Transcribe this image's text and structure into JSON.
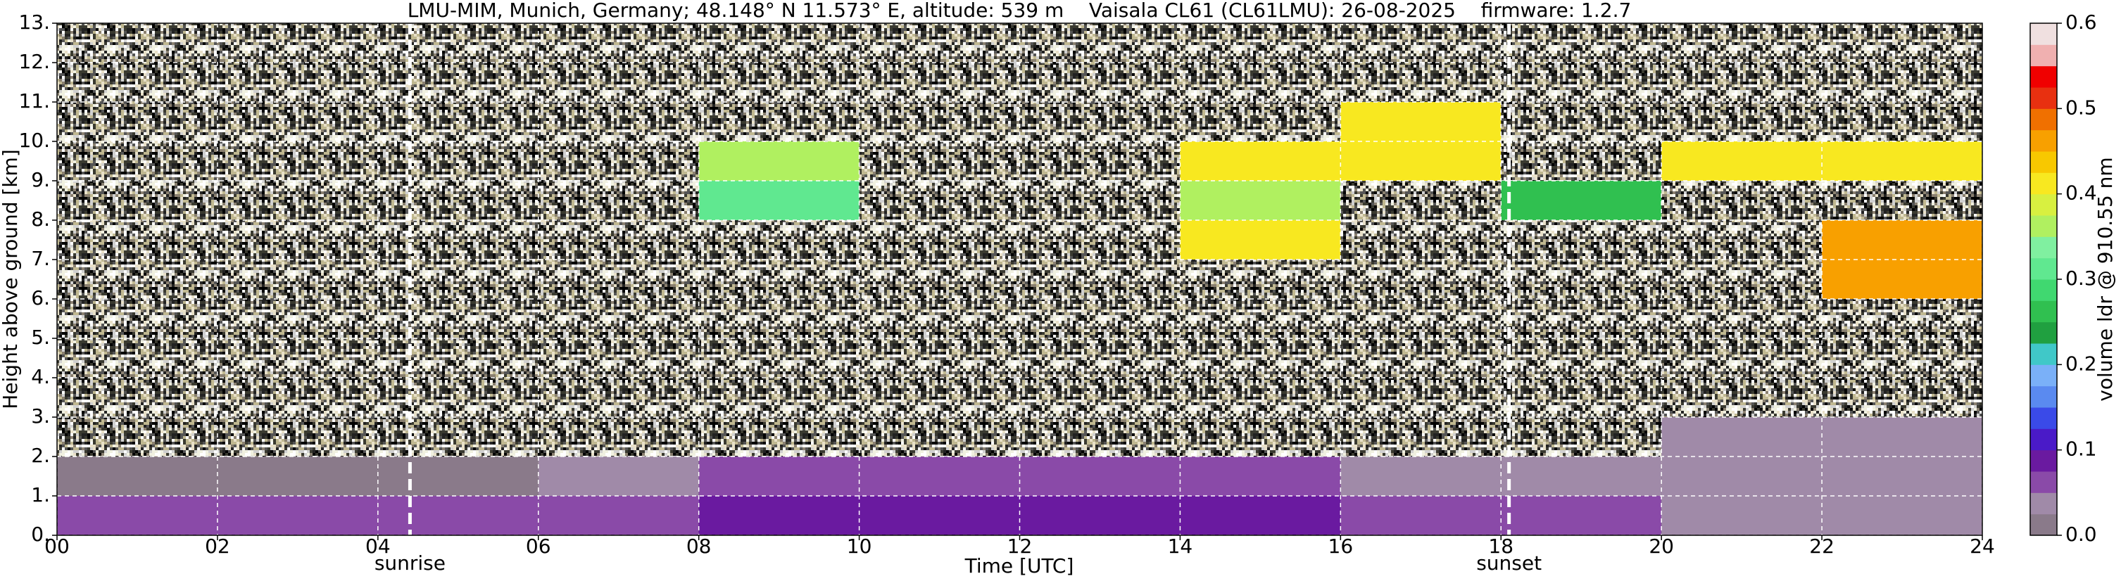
{
  "chart_data": {
    "type": "heatmap",
    "title": "LMU-MIM, Munich, Germany; 48.148° N 11.573° E, altitude: 539 m    Vaisala CL61 (CL61LMU): 26-08-2025    firmware: 1.2.7",
    "x_label": "Time [UTC]",
    "y_label": "Height above ground [km]",
    "colorbar_label": "volume ldr @ 910.55 nm",
    "xlim": [
      0,
      24
    ],
    "xticks": [
      {
        "value": 0,
        "label": "00"
      },
      {
        "value": 2,
        "label": "02"
      },
      {
        "value": 4,
        "label": "04"
      },
      {
        "value": 6,
        "label": "06"
      },
      {
        "value": 8,
        "label": "08"
      },
      10,
      12,
      14,
      16,
      18,
      20,
      22,
      24
    ],
    "ylim": [
      0,
      13
    ],
    "yticks": [
      {
        "value": 0,
        "label": "0."
      },
      {
        "value": 1,
        "label": "1."
      },
      {
        "value": 2,
        "label": "2."
      },
      {
        "value": 3,
        "label": "3."
      },
      {
        "value": 4,
        "label": "4."
      },
      {
        "value": 5,
        "label": "5."
      },
      {
        "value": 6,
        "label": "6."
      },
      {
        "value": 7,
        "label": "7."
      },
      {
        "value": 8,
        "label": "8."
      },
      {
        "value": 9,
        "label": "9."
      },
      {
        "value": 10,
        "label": "10."
      },
      {
        "value": 11,
        "label": "11."
      },
      {
        "value": 12,
        "label": "12."
      },
      {
        "value": 13,
        "label": "13."
      }
    ],
    "zlim": [
      0,
      0.6
    ],
    "zticks": [
      {
        "value": 0,
        "label": "0.0"
      },
      0.1,
      0.2,
      0.3,
      0.4,
      0.5,
      0.6
    ],
    "colors": [
      "#8a7a8a",
      "#a08aa8",
      "#8a4aa8",
      "#6a1aa0",
      "#4a1ac8",
      "#3a4ae8",
      "#5a8af0",
      "#7ab0f8",
      "#40c8c8",
      "#20a040",
      "#30c050",
      "#40d870",
      "#60e890",
      "#80f0a0",
      "#b0f060",
      "#d8f040",
      "#f8e820",
      "#f8c800",
      "#f8a000",
      "#f07000",
      "#e83010",
      "#f00000",
      "#f0b0b0",
      "#f0e0e0"
    ],
    "grid": true,
    "xbins": [
      0,
      2,
      4,
      6,
      8,
      10,
      12,
      14,
      16,
      18,
      20,
      22,
      24
    ],
    "ybins": [
      0,
      1,
      2,
      3,
      4,
      5,
      6,
      7,
      8,
      9,
      10,
      11,
      12,
      13
    ],
    "z": [
      [
        0.05,
        0.05,
        0.05,
        0.07,
        0.08,
        0.09,
        0.09,
        0.08,
        0.06,
        0.05,
        0.04,
        0.04
      ],
      [
        0.02,
        0.02,
        0.02,
        0.03,
        0.05,
        0.06,
        0.06,
        0.05,
        0.04,
        0.03,
        0.03,
        0.03
      ],
      [
        null,
        null,
        null,
        null,
        null,
        null,
        null,
        null,
        null,
        null,
        0.03,
        0.03
      ],
      [
        null,
        null,
        null,
        null,
        null,
        null,
        null,
        null,
        null,
        null,
        null,
        null
      ],
      [
        null,
        null,
        null,
        null,
        null,
        null,
        null,
        null,
        null,
        null,
        null,
        null
      ],
      [
        null,
        null,
        null,
        null,
        null,
        null,
        null,
        null,
        null,
        null,
        null,
        null
      ],
      [
        null,
        null,
        null,
        null,
        null,
        null,
        null,
        null,
        null,
        null,
        null,
        0.45
      ],
      [
        null,
        null,
        null,
        null,
        null,
        null,
        null,
        0.4,
        null,
        null,
        null,
        0.45
      ],
      [
        null,
        null,
        null,
        null,
        0.3,
        null,
        null,
        0.35,
        null,
        0.25,
        null,
        null
      ],
      [
        null,
        null,
        null,
        null,
        0.35,
        null,
        null,
        0.4,
        0.4,
        null,
        0.4,
        0.42
      ],
      [
        null,
        null,
        null,
        null,
        null,
        null,
        null,
        null,
        0.4,
        null,
        null,
        null
      ],
      [
        null,
        null,
        null,
        null,
        null,
        null,
        null,
        null,
        null,
        null,
        null,
        null
      ],
      [
        null,
        null,
        null,
        null,
        null,
        null,
        null,
        null,
        null,
        null,
        null,
        null
      ]
    ],
    "vlines": [
      {
        "x": 4.4,
        "label": "sunrise"
      },
      {
        "x": 18.1,
        "label": "sunset"
      }
    ]
  }
}
